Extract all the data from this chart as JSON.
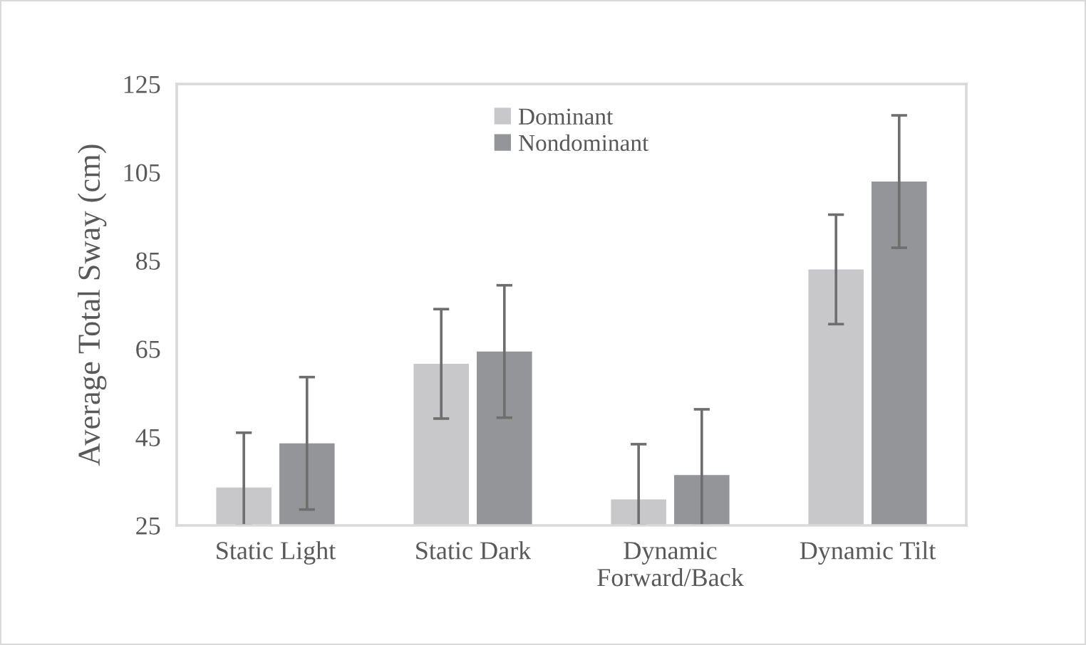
{
  "chart_data": {
    "type": "bar",
    "ylabel": "Average Total Sway (cm)",
    "categories": [
      "Static Light",
      "Static Dark",
      "Dynamic\nForward/Back",
      "Dynamic Tilt"
    ],
    "series": [
      {
        "name": "Dominant",
        "color": "#c8c8ca",
        "values": [
          33.6,
          61.6,
          30.9,
          83.0
        ],
        "errors": [
          [
            25,
            46.0
          ],
          12.4,
          [
            25,
            43.4
          ],
          12.4
        ]
      },
      {
        "name": "Nondominant",
        "color": "#949598",
        "values": [
          43.6,
          64.4,
          36.4,
          102.9
        ],
        "errors": [
          15,
          15,
          [
            25,
            51.3
          ],
          15
        ]
      }
    ],
    "ylim": [
      25,
      125
    ],
    "yticks": [
      25,
      45,
      65,
      85,
      105,
      125
    ],
    "grid": false,
    "legend": "top"
  }
}
